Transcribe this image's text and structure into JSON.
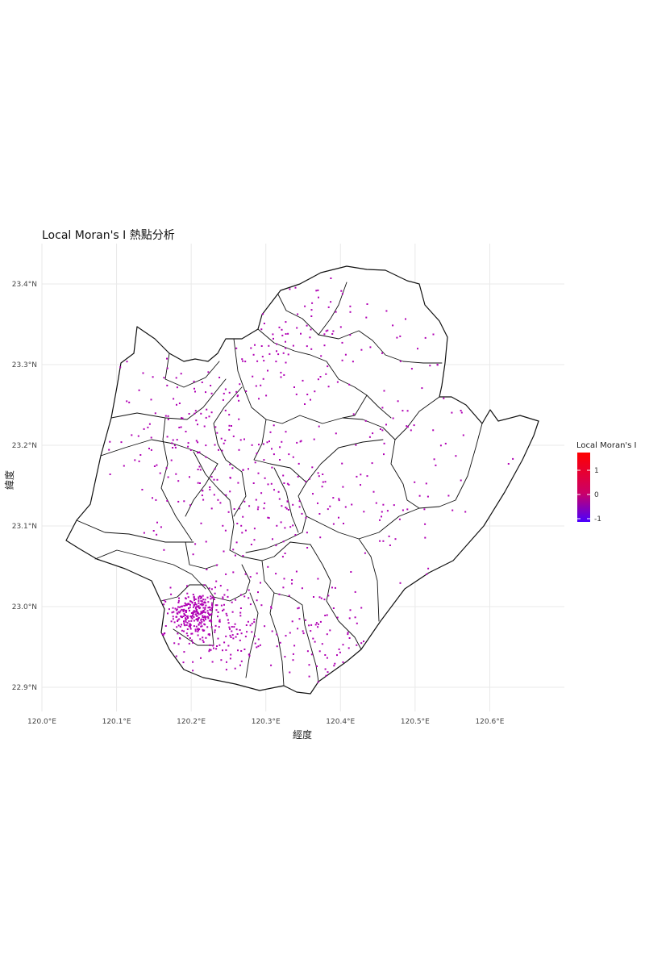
{
  "chart_data": {
    "type": "map",
    "title": "Local Moran's I 熱點分析",
    "xlabel": "經度",
    "ylabel": "緯度",
    "x_ticks": [
      "120.0°E",
      "120.1°E",
      "120.2°E",
      "120.3°E",
      "120.4°E",
      "120.5°E",
      "120.6°E"
    ],
    "y_ticks": [
      "23.4°N",
      "23.3°N",
      "23.2°N",
      "23.1°N",
      "23.0°N",
      "22.9°N"
    ],
    "x_tick_values": [
      120.0,
      120.1,
      120.2,
      120.3,
      120.4,
      120.5,
      120.6
    ],
    "y_tick_values": [
      23.4,
      23.3,
      23.2,
      23.1,
      23.0,
      22.9
    ],
    "xlim": [
      120.0,
      120.7
    ],
    "ylim": [
      22.87,
      23.45
    ],
    "grid": true,
    "legend": {
      "title": "Local Moran's I",
      "placement": "right",
      "labels": [
        "1",
        "0",
        "-1"
      ],
      "range": [
        -1.2,
        1.8
      ],
      "colors": [
        "#ff0000",
        "#0000ff"
      ]
    },
    "point_color": "#b000b4",
    "point_clusters": [
      {
        "name": "urban-core",
        "center": [
          120.205,
          22.993
        ],
        "spread": [
          0.016,
          0.013
        ],
        "count": 210
      },
      {
        "name": "urban-ring",
        "center": [
          120.225,
          22.975
        ],
        "spread": [
          0.035,
          0.028
        ],
        "count": 180
      },
      {
        "name": "northwest",
        "center": [
          120.205,
          23.215
        ],
        "spread": [
          0.055,
          0.05
        ],
        "count": 140
      },
      {
        "name": "north",
        "center": [
          120.33,
          23.34
        ],
        "spread": [
          0.05,
          0.035
        ],
        "count": 80
      },
      {
        "name": "central",
        "center": [
          120.3,
          23.12
        ],
        "spread": [
          0.07,
          0.06
        ],
        "count": 160
      },
      {
        "name": "southeast",
        "center": [
          120.37,
          22.97
        ],
        "spread": [
          0.05,
          0.04
        ],
        "count": 90
      },
      {
        "name": "east",
        "center": [
          120.47,
          23.2
        ],
        "spread": [
          0.07,
          0.1
        ],
        "count": 100
      }
    ]
  }
}
